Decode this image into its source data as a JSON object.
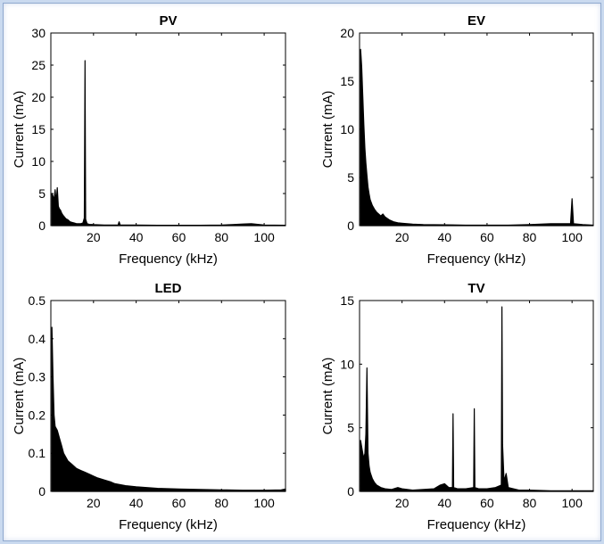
{
  "chart_data": [
    {
      "type": "line",
      "title": "PV",
      "xlabel": "Frequency (kHz)",
      "ylabel": "Current (mA)",
      "xlim": [
        0,
        110
      ],
      "ylim": [
        0,
        30
      ],
      "xticks": [
        20,
        40,
        60,
        80,
        100
      ],
      "yticks": [
        0,
        5,
        10,
        15,
        20,
        25,
        30
      ],
      "grid": false,
      "points": [
        [
          0.5,
          5.0
        ],
        [
          1,
          4.6
        ],
        [
          1.5,
          4.0
        ],
        [
          2,
          5.6
        ],
        [
          2.5,
          3.6
        ],
        [
          3,
          5.9
        ],
        [
          3.5,
          3.0
        ],
        [
          4,
          2.6
        ],
        [
          4.5,
          2.4
        ],
        [
          5,
          2.0
        ],
        [
          5.5,
          1.7
        ],
        [
          6,
          1.5
        ],
        [
          6.5,
          1.3
        ],
        [
          7,
          1.1
        ],
        [
          8,
          0.9
        ],
        [
          9,
          0.6
        ],
        [
          10,
          0.5
        ],
        [
          11,
          0.4
        ],
        [
          12,
          0.3
        ],
        [
          13,
          0.3
        ],
        [
          14,
          0.3
        ],
        [
          15,
          0.4
        ],
        [
          15.7,
          1.2
        ],
        [
          16,
          25.7
        ],
        [
          16.3,
          1.0
        ],
        [
          17,
          0.3
        ],
        [
          18,
          0.2
        ],
        [
          20,
          0.15
        ],
        [
          25,
          0.1
        ],
        [
          30,
          0.1
        ],
        [
          31.5,
          0.1
        ],
        [
          32,
          0.6
        ],
        [
          32.5,
          0.1
        ],
        [
          40,
          0.08
        ],
        [
          50,
          0.06
        ],
        [
          60,
          0.05
        ],
        [
          70,
          0.05
        ],
        [
          80,
          0.08
        ],
        [
          85,
          0.15
        ],
        [
          90,
          0.25
        ],
        [
          94,
          0.3
        ],
        [
          97,
          0.2
        ],
        [
          100,
          0.1
        ],
        [
          110,
          0.05
        ]
      ]
    },
    {
      "type": "line",
      "title": "EV",
      "xlabel": "Frequency (kHz)",
      "ylabel": "Current (mA)",
      "xlim": [
        0,
        110
      ],
      "ylim": [
        0,
        20
      ],
      "xticks": [
        20,
        40,
        60,
        80,
        100
      ],
      "yticks": [
        0,
        5,
        10,
        15,
        20
      ],
      "grid": false,
      "points": [
        [
          0.5,
          18.3
        ],
        [
          1,
          16.5
        ],
        [
          1.5,
          13.5
        ],
        [
          2,
          10.5
        ],
        [
          2.5,
          8.0
        ],
        [
          3,
          6.5
        ],
        [
          3.5,
          5.2
        ],
        [
          4,
          4.0
        ],
        [
          4.5,
          3.3
        ],
        [
          5,
          2.7
        ],
        [
          6,
          2.1
        ],
        [
          7,
          1.7
        ],
        [
          8,
          1.4
        ],
        [
          9,
          1.2
        ],
        [
          10,
          1.0
        ],
        [
          11,
          1.2
        ],
        [
          12,
          0.9
        ],
        [
          14,
          0.6
        ],
        [
          16,
          0.4
        ],
        [
          18,
          0.3
        ],
        [
          20,
          0.25
        ],
        [
          25,
          0.15
        ],
        [
          30,
          0.1
        ],
        [
          40,
          0.08
        ],
        [
          50,
          0.05
        ],
        [
          60,
          0.05
        ],
        [
          70,
          0.05
        ],
        [
          80,
          0.1
        ],
        [
          85,
          0.15
        ],
        [
          90,
          0.2
        ],
        [
          95,
          0.2
        ],
        [
          99.3,
          0.2
        ],
        [
          100,
          2.8
        ],
        [
          100.7,
          0.2
        ],
        [
          105,
          0.1
        ],
        [
          110,
          0.05
        ]
      ]
    },
    {
      "type": "line",
      "title": "LED",
      "xlabel": "Frequency (kHz)",
      "ylabel": "Current (mA)",
      "xlim": [
        0,
        110
      ],
      "ylim": [
        0,
        0.5
      ],
      "xticks": [
        20,
        40,
        60,
        80,
        100
      ],
      "yticks": [
        0,
        0.1,
        0.2,
        0.3,
        0.4,
        0.5
      ],
      "grid": false,
      "points": [
        [
          0.5,
          0.43
        ],
        [
          1,
          0.3
        ],
        [
          1.5,
          0.2
        ],
        [
          2,
          0.17
        ],
        [
          3,
          0.16
        ],
        [
          4,
          0.14
        ],
        [
          5,
          0.12
        ],
        [
          6,
          0.1
        ],
        [
          7,
          0.09
        ],
        [
          8,
          0.08
        ],
        [
          10,
          0.07
        ],
        [
          12,
          0.06
        ],
        [
          14,
          0.055
        ],
        [
          16,
          0.05
        ],
        [
          18,
          0.045
        ],
        [
          20,
          0.04
        ],
        [
          22,
          0.035
        ],
        [
          25,
          0.03
        ],
        [
          28,
          0.025
        ],
        [
          30,
          0.02
        ],
        [
          35,
          0.015
        ],
        [
          40,
          0.012
        ],
        [
          50,
          0.008
        ],
        [
          60,
          0.006
        ],
        [
          70,
          0.005
        ],
        [
          80,
          0.004
        ],
        [
          90,
          0.003
        ],
        [
          100,
          0.003
        ],
        [
          108,
          0.004
        ],
        [
          110,
          0.006
        ]
      ]
    },
    {
      "type": "line",
      "title": "TV",
      "xlabel": "Frequency (kHz)",
      "ylabel": "Current (mA)",
      "xlim": [
        0,
        110
      ],
      "ylim": [
        0,
        15
      ],
      "xticks": [
        20,
        40,
        60,
        80,
        100
      ],
      "yticks": [
        0,
        5,
        10,
        15
      ],
      "grid": false,
      "points": [
        [
          0.5,
          4.0
        ],
        [
          1,
          3.5
        ],
        [
          1.5,
          3.0
        ],
        [
          2,
          2.6
        ],
        [
          2.5,
          3.0
        ],
        [
          3,
          4.5
        ],
        [
          3.5,
          9.7
        ],
        [
          4,
          3.0
        ],
        [
          4.5,
          2.0
        ],
        [
          5,
          1.5
        ],
        [
          6,
          1.0
        ],
        [
          7,
          0.7
        ],
        [
          8,
          0.5
        ],
        [
          10,
          0.3
        ],
        [
          12,
          0.2
        ],
        [
          15,
          0.15
        ],
        [
          18,
          0.3
        ],
        [
          20,
          0.2
        ],
        [
          25,
          0.1
        ],
        [
          30,
          0.15
        ],
        [
          35,
          0.2
        ],
        [
          38,
          0.5
        ],
        [
          40,
          0.6
        ],
        [
          42,
          0.3
        ],
        [
          43.7,
          0.3
        ],
        [
          44,
          6.1
        ],
        [
          44.3,
          0.3
        ],
        [
          46,
          0.2
        ],
        [
          50,
          0.2
        ],
        [
          53.7,
          0.3
        ],
        [
          54,
          6.5
        ],
        [
          54.3,
          0.3
        ],
        [
          56,
          0.2
        ],
        [
          60,
          0.2
        ],
        [
          64,
          0.3
        ],
        [
          66.7,
          0.5
        ],
        [
          67,
          14.5
        ],
        [
          67.3,
          3.7
        ],
        [
          68,
          0.8
        ],
        [
          69,
          1.4
        ],
        [
          70,
          0.3
        ],
        [
          75,
          0.1
        ],
        [
          80,
          0.1
        ],
        [
          90,
          0.05
        ],
        [
          100,
          0.05
        ],
        [
          110,
          0.05
        ]
      ]
    }
  ]
}
